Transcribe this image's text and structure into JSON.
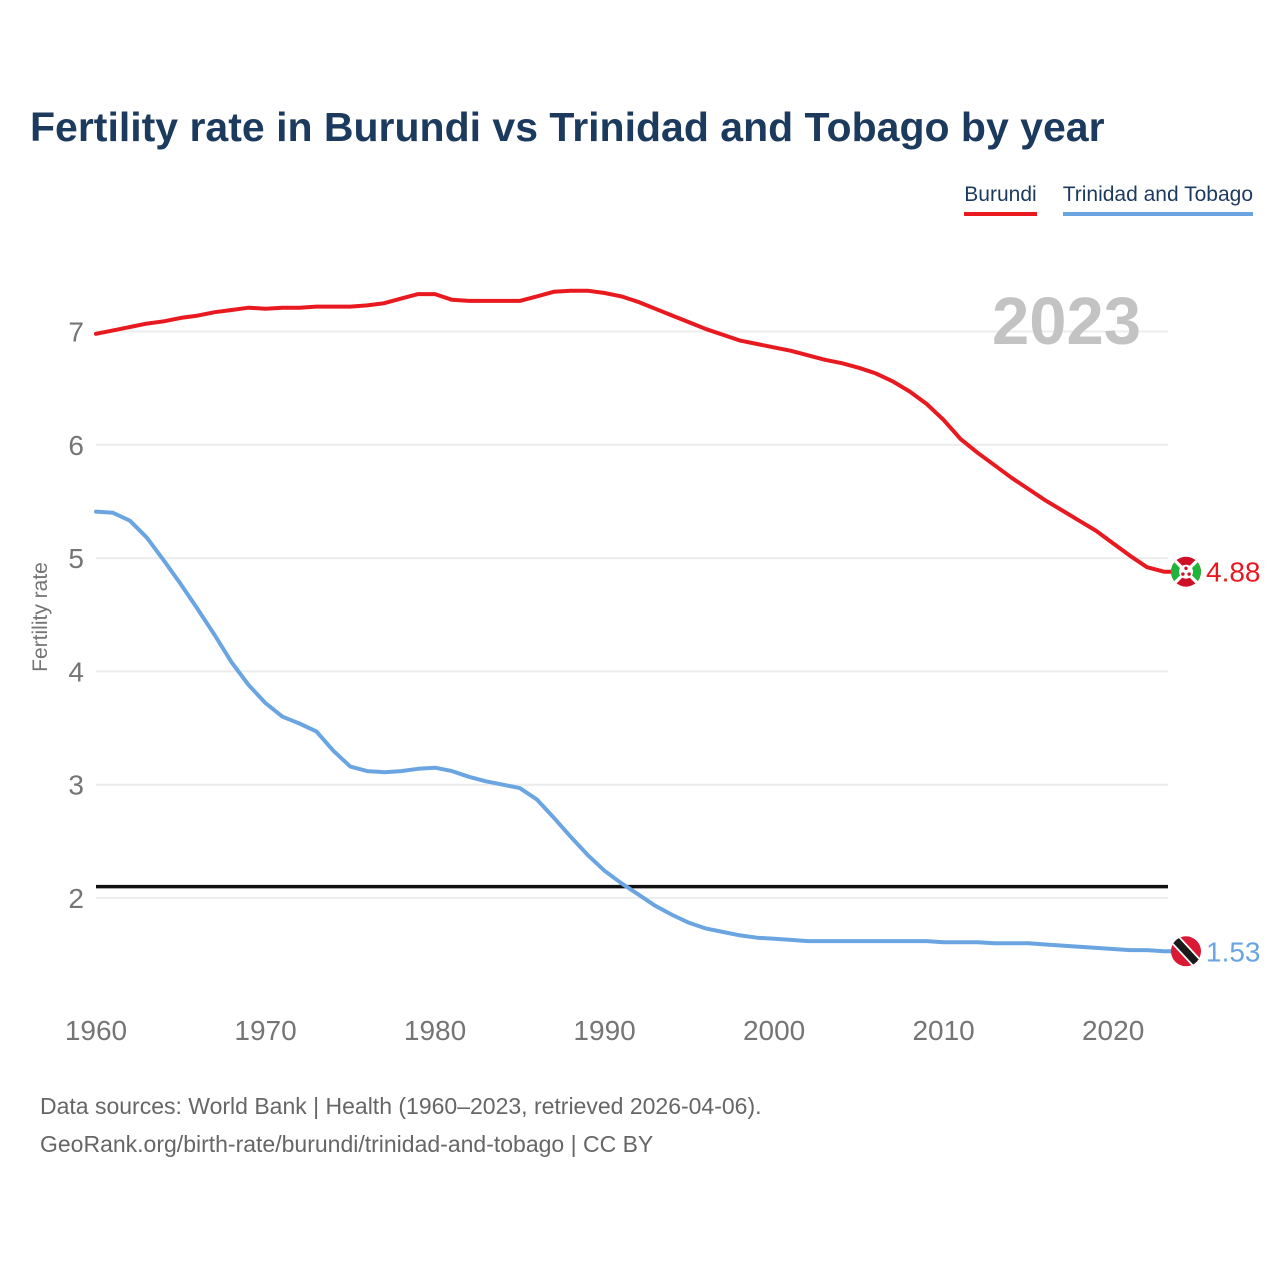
{
  "page": {
    "title": "Fertility rate in Burundi vs Trinidad and Tobago by year",
    "watermark_year": "2023"
  },
  "legend": {
    "items": [
      {
        "label": "Burundi",
        "color": "#e8191f"
      },
      {
        "label": "Trinidad and Tobago",
        "color": "#6aa5e2"
      }
    ]
  },
  "axes": {
    "y_label": "Fertility rate",
    "y_ticks": [
      2,
      3,
      4,
      5,
      6,
      7
    ],
    "x_ticks": [
      1960,
      1970,
      1980,
      1990,
      2000,
      2010,
      2020
    ]
  },
  "replacement_line": {
    "value": 2.1,
    "color": "#111111"
  },
  "chart_data": {
    "type": "line",
    "title": "Fertility rate in Burundi vs Trinidad and Tobago by year",
    "xlabel": "",
    "ylabel": "Fertility rate",
    "xlim": [
      1960,
      2023
    ],
    "ylim": [
      1.3,
      7.6
    ],
    "grid": "horizontal",
    "legend_position": "top-right",
    "x": [
      1960,
      1961,
      1962,
      1963,
      1964,
      1965,
      1966,
      1967,
      1968,
      1969,
      1970,
      1971,
      1972,
      1973,
      1974,
      1975,
      1976,
      1977,
      1978,
      1979,
      1980,
      1981,
      1982,
      1983,
      1984,
      1985,
      1986,
      1987,
      1988,
      1989,
      1990,
      1991,
      1992,
      1993,
      1994,
      1995,
      1996,
      1997,
      1998,
      1999,
      2000,
      2001,
      2002,
      2003,
      2004,
      2005,
      2006,
      2007,
      2008,
      2009,
      2010,
      2011,
      2012,
      2013,
      2014,
      2015,
      2016,
      2017,
      2018,
      2019,
      2020,
      2021,
      2022,
      2023
    ],
    "series": [
      {
        "name": "Burundi",
        "color": "#e8191f",
        "end_label": "4.88",
        "end_value": 4.88,
        "flag": "burundi",
        "values": [
          6.98,
          7.01,
          7.04,
          7.07,
          7.09,
          7.12,
          7.14,
          7.17,
          7.19,
          7.21,
          7.2,
          7.21,
          7.21,
          7.22,
          7.22,
          7.22,
          7.23,
          7.25,
          7.29,
          7.33,
          7.33,
          7.28,
          7.27,
          7.27,
          7.27,
          7.27,
          7.31,
          7.35,
          7.36,
          7.36,
          7.34,
          7.31,
          7.26,
          7.2,
          7.14,
          7.08,
          7.02,
          6.97,
          6.92,
          6.89,
          6.86,
          6.83,
          6.79,
          6.75,
          6.72,
          6.68,
          6.63,
          6.56,
          6.47,
          6.36,
          6.22,
          6.05,
          5.93,
          5.82,
          5.71,
          5.61,
          5.51,
          5.42,
          5.33,
          5.24,
          5.13,
          5.02,
          4.92,
          4.88
        ]
      },
      {
        "name": "Trinidad and Tobago",
        "color": "#6aa5e2",
        "end_label": "1.53",
        "end_value": 1.53,
        "flag": "trinidad-and-tobago",
        "values": [
          5.41,
          5.4,
          5.33,
          5.18,
          4.98,
          4.77,
          4.55,
          4.32,
          4.08,
          3.88,
          3.72,
          3.6,
          3.54,
          3.47,
          3.3,
          3.16,
          3.12,
          3.11,
          3.12,
          3.14,
          3.15,
          3.12,
          3.07,
          3.03,
          3.0,
          2.97,
          2.87,
          2.71,
          2.54,
          2.38,
          2.24,
          2.13,
          2.03,
          1.93,
          1.85,
          1.78,
          1.73,
          1.7,
          1.67,
          1.65,
          1.64,
          1.63,
          1.62,
          1.62,
          1.62,
          1.62,
          1.62,
          1.62,
          1.62,
          1.62,
          1.61,
          1.61,
          1.61,
          1.6,
          1.6,
          1.6,
          1.59,
          1.58,
          1.57,
          1.56,
          1.55,
          1.54,
          1.54,
          1.53
        ]
      }
    ]
  },
  "footer": {
    "line1": "Data sources: World Bank | Health (1960–2023, retrieved 2026-04-06).",
    "line2": "GeoRank.org/birth-rate/burundi/trinidad-and-tobago | CC BY"
  }
}
